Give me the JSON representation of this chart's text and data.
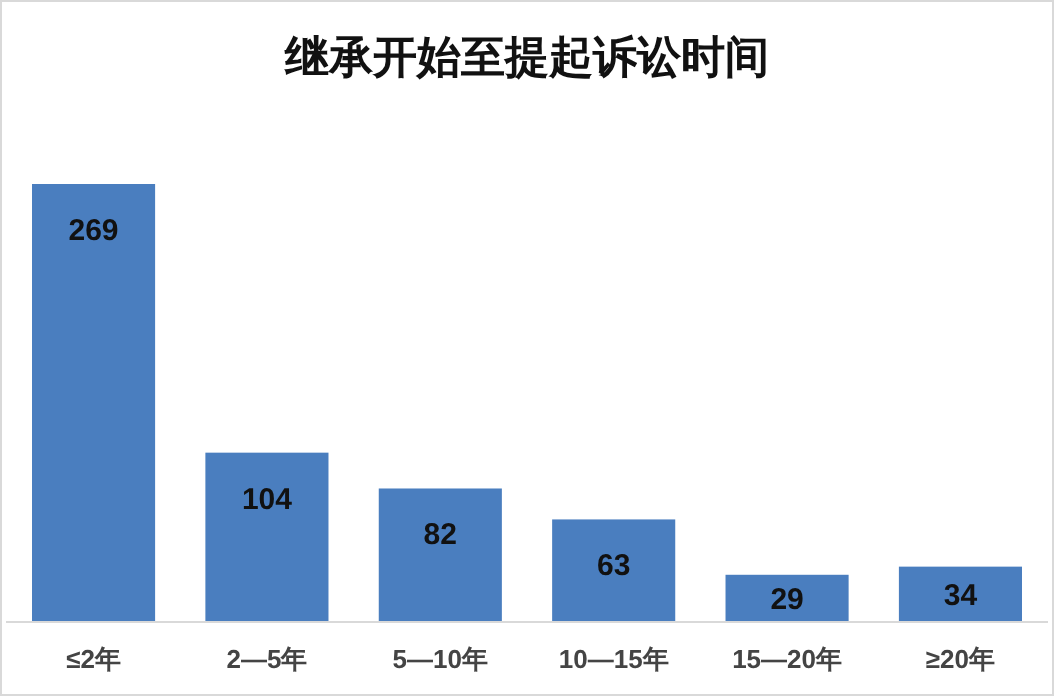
{
  "chart_data": {
    "type": "bar",
    "title": "继承开始至提起诉讼时间",
    "categories": [
      "≤2年",
      "2—5年",
      "5—10年",
      "10—15年",
      "15—20年",
      "≥20年"
    ],
    "values": [
      269,
      104,
      82,
      63,
      29,
      34
    ],
    "color": "#4a7ebf",
    "data_labels": true
  }
}
